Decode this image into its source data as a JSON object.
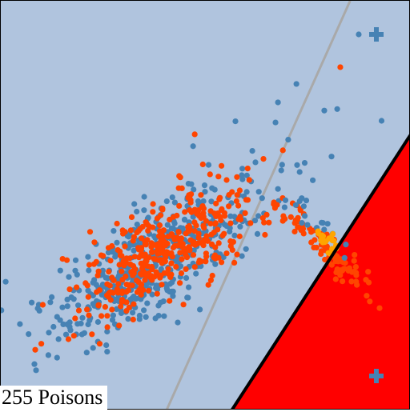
{
  "caption": "255 Poisons",
  "colors": {
    "safe_region": "#b0c4de",
    "poison_region": "#ff0000",
    "decision_boundary": "#000000",
    "clean_boundary": "#a9a9a9",
    "class_blue": "#4682b4",
    "class_orange": "#ff4500",
    "poison_points": "#ffa500"
  },
  "chart_data": {
    "type": "scatter",
    "title": "",
    "xlabel": "",
    "ylabel": "",
    "xlim": [
      0,
      100
    ],
    "ylim": [
      0,
      100
    ],
    "grid": false,
    "regions": [
      {
        "name": "",
        "color": "#b0c4de",
        "role": "background class region"
      },
      {
        "name": "",
        "color": "#ff0000",
        "role": "lower-right class region",
        "polygon": [
          [
            56.3,
            0
          ],
          [
            100,
            67.4
          ],
          [
            100,
            0
          ]
        ]
      }
    ],
    "lines": [
      {
        "color": "#000000",
        "points": [
          [
            56.3,
            0
          ],
          [
            100,
            67.4
          ]
        ]
      },
      {
        "color": "#a9a9a9",
        "points": [
          [
            40.4,
            0
          ],
          [
            85.2,
            100
          ]
        ]
      }
    ],
    "centroids": [
      {
        "color": "#4682b4",
        "marker": "plus",
        "x": 91.6,
        "y": 91.8
      },
      {
        "color": "#4682b4",
        "marker": "plus",
        "x": 91.6,
        "y": 8.4
      }
    ],
    "clusters": [
      {
        "color": "#4682b4",
        "count": 480,
        "mean": [
          37,
          36
        ],
        "axis_deg": 37,
        "spread": [
          16,
          5.8
        ]
      },
      {
        "color": "#ff4500",
        "count": 380,
        "mean": [
          40,
          39
        ],
        "axis_deg": 37,
        "spread": [
          13,
          5
        ]
      },
      {
        "color": "#ff4500",
        "count": 95,
        "mean": [
          80,
          39
        ],
        "axis_deg": -40,
        "spread": [
          9,
          1.9
        ]
      },
      {
        "color": "#4682b4",
        "count": 18,
        "mean": [
          76,
          46
        ],
        "axis_deg": -40,
        "spread": [
          6,
          1.5
        ]
      },
      {
        "color": "#ffa500",
        "count": 22,
        "mean": [
          79.2,
          41.5
        ],
        "axis_deg": -60,
        "spread": [
          1.4,
          1.1
        ]
      }
    ],
    "outliers": [
      {
        "color": "#4682b4",
        "x": 87.3,
        "y": 91.8
      },
      {
        "color": "#ff4500",
        "x": 82.8,
        "y": 83.8
      },
      {
        "color": "#4682b4",
        "x": 72.1,
        "y": 79.7
      },
      {
        "color": "#4682b4",
        "x": 67.6,
        "y": 75.2
      },
      {
        "color": "#4682b4",
        "x": 78.9,
        "y": 73.2
      },
      {
        "color": "#4682b4",
        "x": 67.0,
        "y": 70.3
      },
      {
        "color": "#ff4500",
        "x": 47.3,
        "y": 67.4
      },
      {
        "color": "#4682b4",
        "x": 46.9,
        "y": 64.5
      },
      {
        "color": "#ff4500",
        "x": 68.8,
        "y": 63.5
      },
      {
        "color": "#4682b4",
        "x": 68.4,
        "y": 58.6
      },
      {
        "color": "#4682b4",
        "x": 8.6,
        "y": 9.8
      },
      {
        "color": "#4682b4",
        "x": 8.2,
        "y": 11.3
      },
      {
        "color": "#ff4500",
        "x": 8.4,
        "y": 14.8
      },
      {
        "color": "#ff4500",
        "x": 90.0,
        "y": 26.6
      }
    ]
  }
}
